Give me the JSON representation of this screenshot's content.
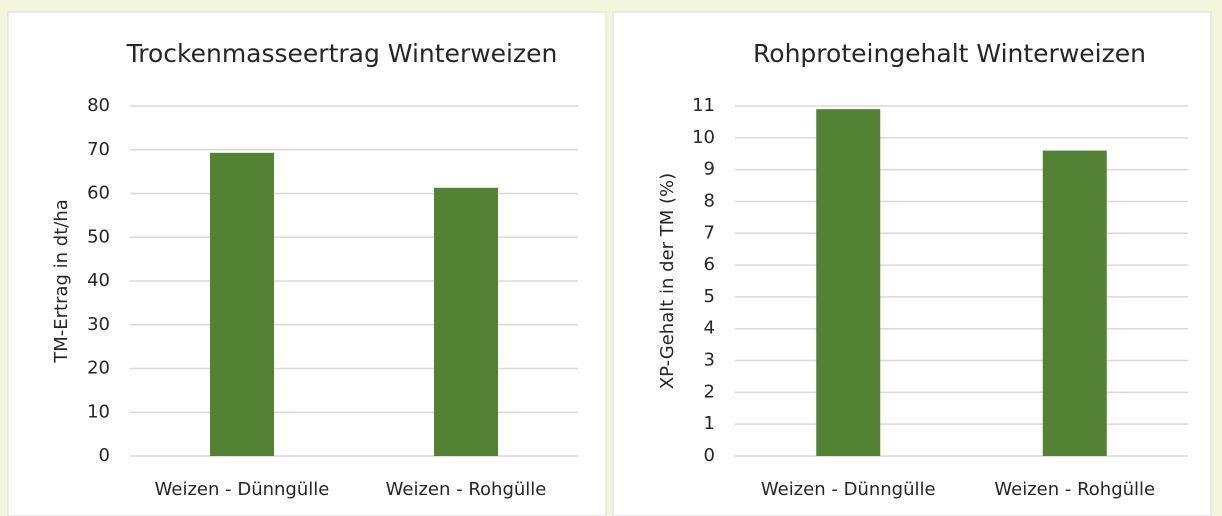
{
  "chart_data": [
    {
      "type": "bar",
      "title": "Trockenmasseertrag Winterweizen",
      "y_label": "TM-Ertrag in dt/ha",
      "categories": [
        "Weizen - Dünngülle",
        "Weizen - Rohgülle"
      ],
      "values": [
        69.3,
        61.3
      ],
      "color": "#548235",
      "ylim": [
        0,
        80
      ],
      "yticks": [
        0,
        10,
        20,
        30,
        40,
        50,
        60,
        70,
        80
      ],
      "grid": true
    },
    {
      "type": "bar",
      "title": "Rohproteingehalt Winterweizen",
      "y_label": "XP-Gehalt in der TM (%)",
      "categories": [
        "Weizen - Dünngülle",
        "Weizen - Rohgülle"
      ],
      "values": [
        10.9,
        9.6
      ],
      "color": "#548235",
      "ylim": [
        0,
        11
      ],
      "yticks": [
        0,
        1,
        2,
        3,
        4,
        5,
        6,
        7,
        8,
        9,
        10,
        11
      ],
      "grid": true
    }
  ]
}
